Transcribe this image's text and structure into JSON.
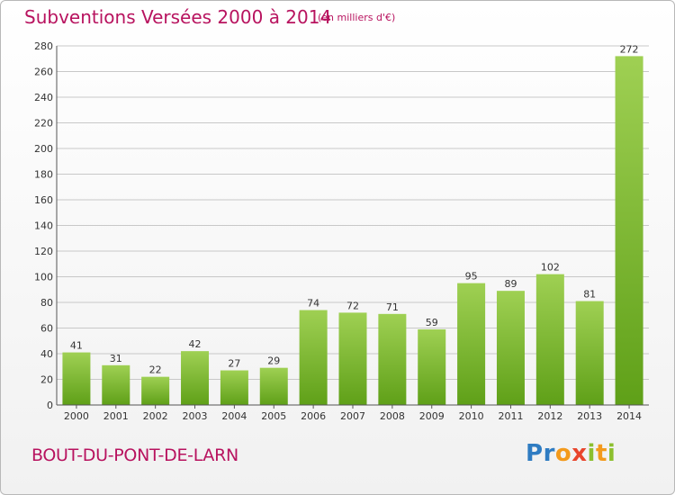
{
  "header": {
    "title": "Subventions Versées 2000 à 2014",
    "subtitle": "(en milliers d'€)"
  },
  "footer": {
    "city": "BOUT-DU-PONT-DE-LARN",
    "logo_text": "Proxiti"
  },
  "colors": {
    "title": "#b8135f",
    "bar_top": "#9fd053",
    "bar_bottom": "#5fa018",
    "grid": "#c8c8c8"
  },
  "chart_data": {
    "type": "bar",
    "title": "Subventions Versées 2000 à 2014",
    "subtitle": "(en milliers d'€)",
    "categories": [
      "2000",
      "2001",
      "2002",
      "2003",
      "2004",
      "2005",
      "2006",
      "2007",
      "2008",
      "2009",
      "2010",
      "2011",
      "2012",
      "2013",
      "2014"
    ],
    "values": [
      41,
      31,
      22,
      42,
      27,
      29,
      74,
      72,
      71,
      59,
      95,
      89,
      102,
      81,
      272
    ],
    "ylim": [
      0,
      280
    ],
    "yticks": [
      0,
      20,
      40,
      60,
      80,
      100,
      120,
      140,
      160,
      180,
      200,
      220,
      240,
      260,
      280
    ],
    "grid": true,
    "data_labels": true,
    "xlabel": "",
    "ylabel": ""
  }
}
